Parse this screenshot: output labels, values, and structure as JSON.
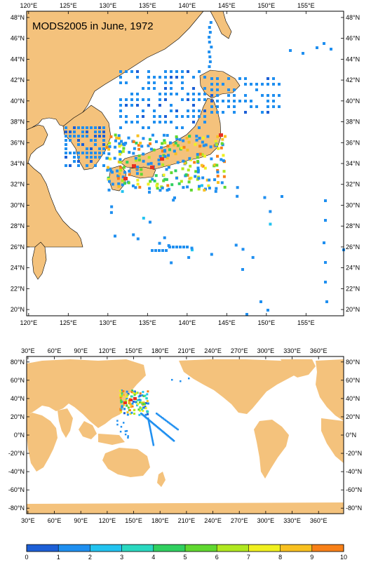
{
  "title": "MODS2005 in June, 1972",
  "colors": {
    "land": "#f4c27c",
    "ocean": "#ffffff",
    "coast": "#000000"
  },
  "top_map": {
    "lon_labels": [
      "120°E",
      "125°E",
      "130°E",
      "135°E",
      "140°E",
      "145°E",
      "150°E",
      "155°E"
    ],
    "lat_labels": [
      "48°N",
      "46°N",
      "44°N",
      "42°N",
      "40°N",
      "38°N",
      "36°N",
      "34°N",
      "32°N",
      "30°N",
      "28°N",
      "26°N",
      "24°N",
      "22°N",
      "20°N"
    ]
  },
  "bottom_map": {
    "lon_labels": [
      "30°E",
      "60°E",
      "90°E",
      "120°E",
      "150°E",
      "180°E",
      "210°E",
      "240°E",
      "270°E",
      "300°E",
      "330°E",
      "360°E"
    ],
    "lat_labels": [
      "80°N",
      "60°N",
      "40°N",
      "20°N",
      "0°N",
      "-20°N",
      "-40°N",
      "-60°N",
      "-80°N"
    ]
  },
  "colorbar": {
    "labels": [
      "0",
      "1",
      "2",
      "3",
      "4",
      "5",
      "6",
      "7",
      "8",
      "9",
      "10"
    ],
    "colors": [
      "#1d5fd6",
      "#1f8ff0",
      "#22c3f0",
      "#2ad8c0",
      "#30d060",
      "#60d830",
      "#b0e820",
      "#f0f020",
      "#f8c020",
      "#f88018"
    ]
  }
}
